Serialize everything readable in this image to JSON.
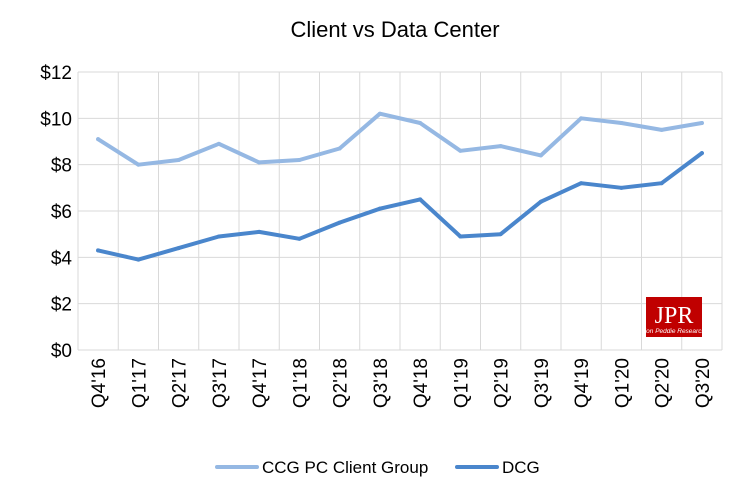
{
  "chart_data": {
    "type": "line",
    "title": "Client vs Data Center",
    "categories": [
      "Q4'16",
      "Q1'17",
      "Q2'17",
      "Q3'17",
      "Q4'17",
      "Q1'18",
      "Q2'18",
      "Q3'18",
      "Q4'18",
      "Q1'19",
      "Q2'19",
      "Q3'19",
      "Q4'19",
      "Q1'20",
      "Q2'20",
      "Q3'20"
    ],
    "series": [
      {
        "name": "CCG PC Client Group",
        "color": "#95b8e3",
        "values": [
          9.1,
          8.0,
          8.2,
          8.9,
          8.1,
          8.2,
          8.7,
          10.2,
          9.8,
          8.6,
          8.8,
          8.4,
          10.0,
          9.8,
          9.5,
          9.8
        ]
      },
      {
        "name": "DCG",
        "color": "#4a86cc",
        "values": [
          4.3,
          3.9,
          4.4,
          4.9,
          5.1,
          4.8,
          5.5,
          6.1,
          6.5,
          4.9,
          5.0,
          6.4,
          7.2,
          7.0,
          7.2,
          8.5
        ]
      }
    ],
    "ylim": [
      0,
      12
    ],
    "yticks": [
      0,
      2,
      4,
      6,
      8,
      10,
      12
    ],
    "ytick_labels": [
      "$0",
      "$2",
      "$4",
      "$6",
      "$8",
      "$10",
      "$12"
    ],
    "grid": true,
    "legend_position": "bottom",
    "xlabel": "",
    "ylabel": ""
  },
  "logo": {
    "text": "JPR",
    "subtext": "Jon Peddie Research",
    "color": "#c00000"
  }
}
